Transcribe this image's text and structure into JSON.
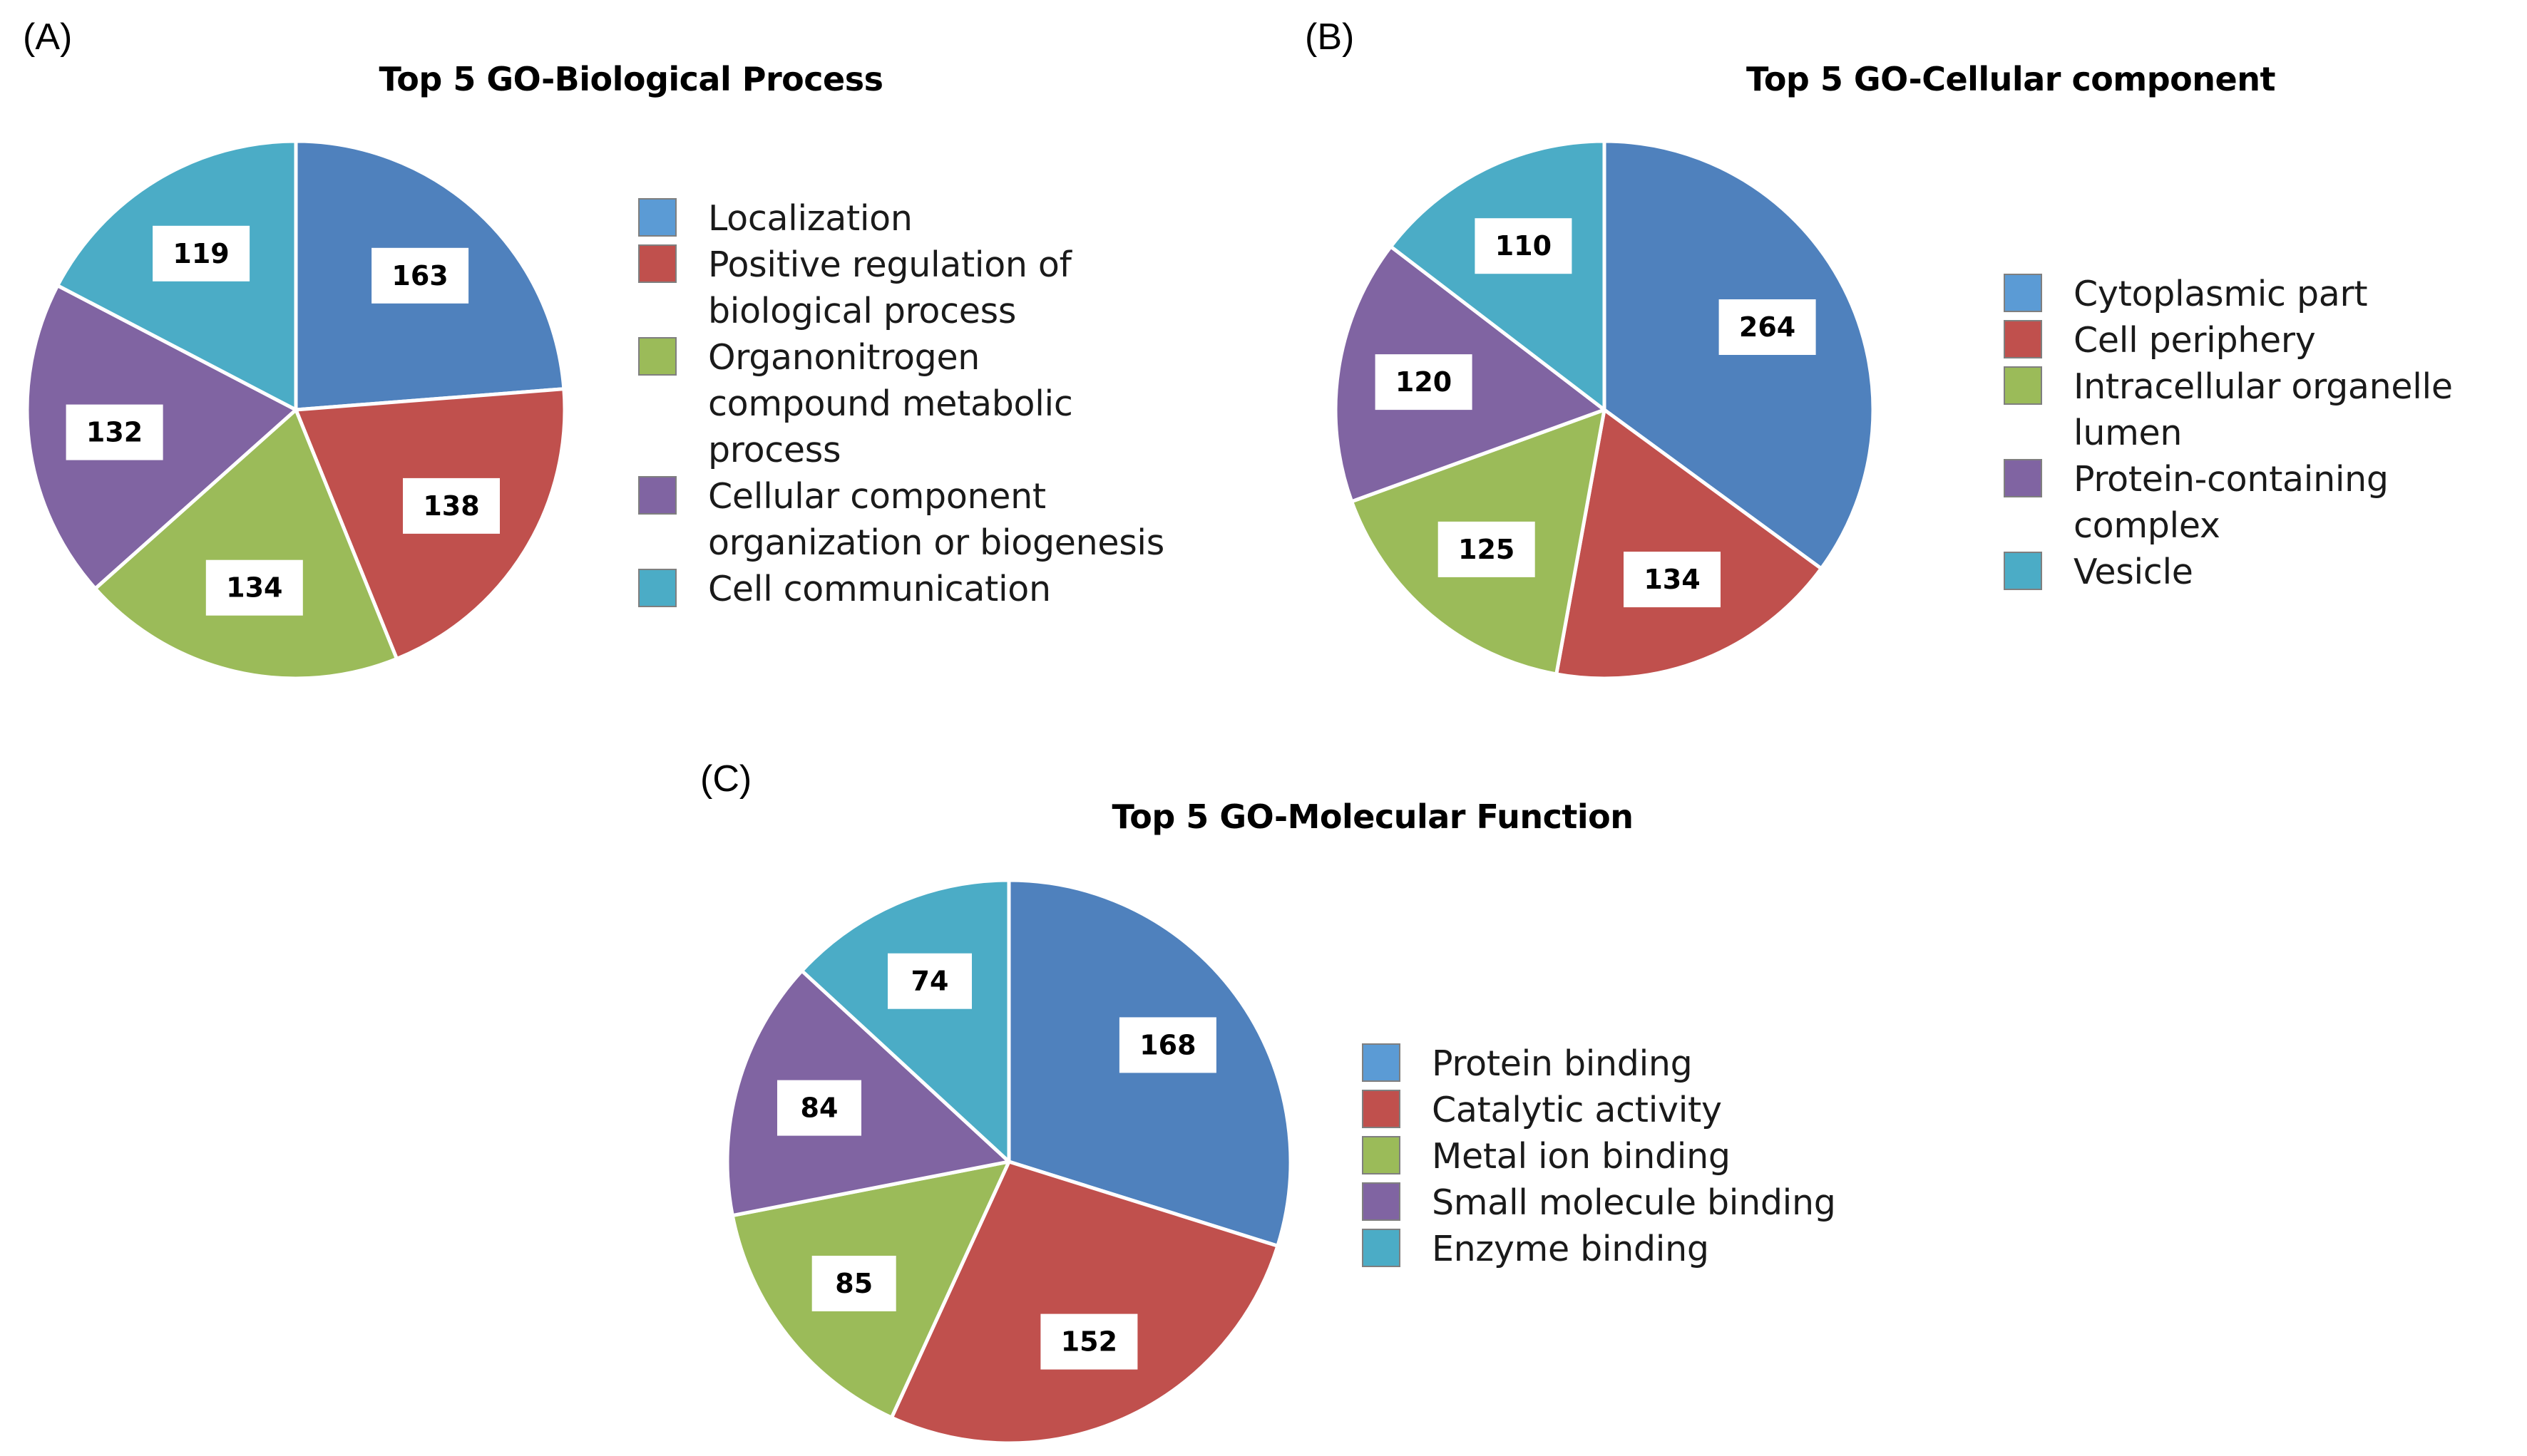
{
  "chart_data": [
    {
      "type": "pie",
      "panel_label": "(A)",
      "title": "Top 5 GO-Biological Process",
      "categories": [
        "Localization",
        "Positive regulation of biological process",
        "Organonitrogen compound metabolic process",
        "Cellular component organization or biogenesis",
        "Cell communication"
      ],
      "legend_lines": [
        [
          "Localization"
        ],
        [
          "Positive regulation of",
          "biological process"
        ],
        [
          "Organonitrogen",
          "compound metabolic",
          "process"
        ],
        [
          "Cellular component",
          "organization or biogenesis"
        ],
        [
          "Cell communication"
        ]
      ],
      "values": [
        163,
        138,
        134,
        132,
        119
      ],
      "colors": [
        "#4f81bd",
        "#c0504d",
        "#9bbb59",
        "#8064a2",
        "#4bacc6"
      ],
      "swatch_colors": [
        "#5b9bd5",
        "#c0504d",
        "#9bbb59",
        "#8064a2",
        "#4bacc6"
      ],
      "start_angle_deg": 0,
      "direction": "clockwise",
      "legend_position": "right"
    },
    {
      "type": "pie",
      "panel_label": "(B)",
      "title": "Top 5 GO-Cellular component",
      "categories": [
        "Cytoplasmic part",
        "Cell periphery",
        "Intracellular organelle lumen",
        "Protein-containing complex",
        "Vesicle"
      ],
      "legend_lines": [
        [
          "Cytoplasmic part"
        ],
        [
          "Cell periphery"
        ],
        [
          "Intracellular organelle lumen"
        ],
        [
          "Protein-containing complex"
        ],
        [
          "Vesicle"
        ]
      ],
      "values": [
        264,
        134,
        125,
        120,
        110
      ],
      "colors": [
        "#4f81bd",
        "#c0504d",
        "#9bbb59",
        "#8064a2",
        "#4bacc6"
      ],
      "swatch_colors": [
        "#5b9bd5",
        "#c0504d",
        "#9bbb59",
        "#8064a2",
        "#4bacc6"
      ],
      "start_angle_deg": 0,
      "direction": "clockwise",
      "legend_position": "right"
    },
    {
      "type": "pie",
      "panel_label": "(C)",
      "title": "Top 5 GO-Molecular Function",
      "categories": [
        "Protein binding",
        "Catalytic activity",
        "Metal ion binding",
        "Small molecule binding",
        "Enzyme binding"
      ],
      "legend_lines": [
        [
          "Protein binding"
        ],
        [
          "Catalytic activity"
        ],
        [
          "Metal ion binding"
        ],
        [
          "Small molecule binding"
        ],
        [
          "Enzyme binding"
        ]
      ],
      "values": [
        168,
        152,
        85,
        84,
        74
      ],
      "colors": [
        "#4f81bd",
        "#c0504d",
        "#9bbb59",
        "#8064a2",
        "#4bacc6"
      ],
      "swatch_colors": [
        "#5b9bd5",
        "#c0504d",
        "#9bbb59",
        "#8064a2",
        "#4bacc6"
      ],
      "start_angle_deg": 0,
      "direction": "clockwise",
      "legend_position": "right"
    }
  ]
}
